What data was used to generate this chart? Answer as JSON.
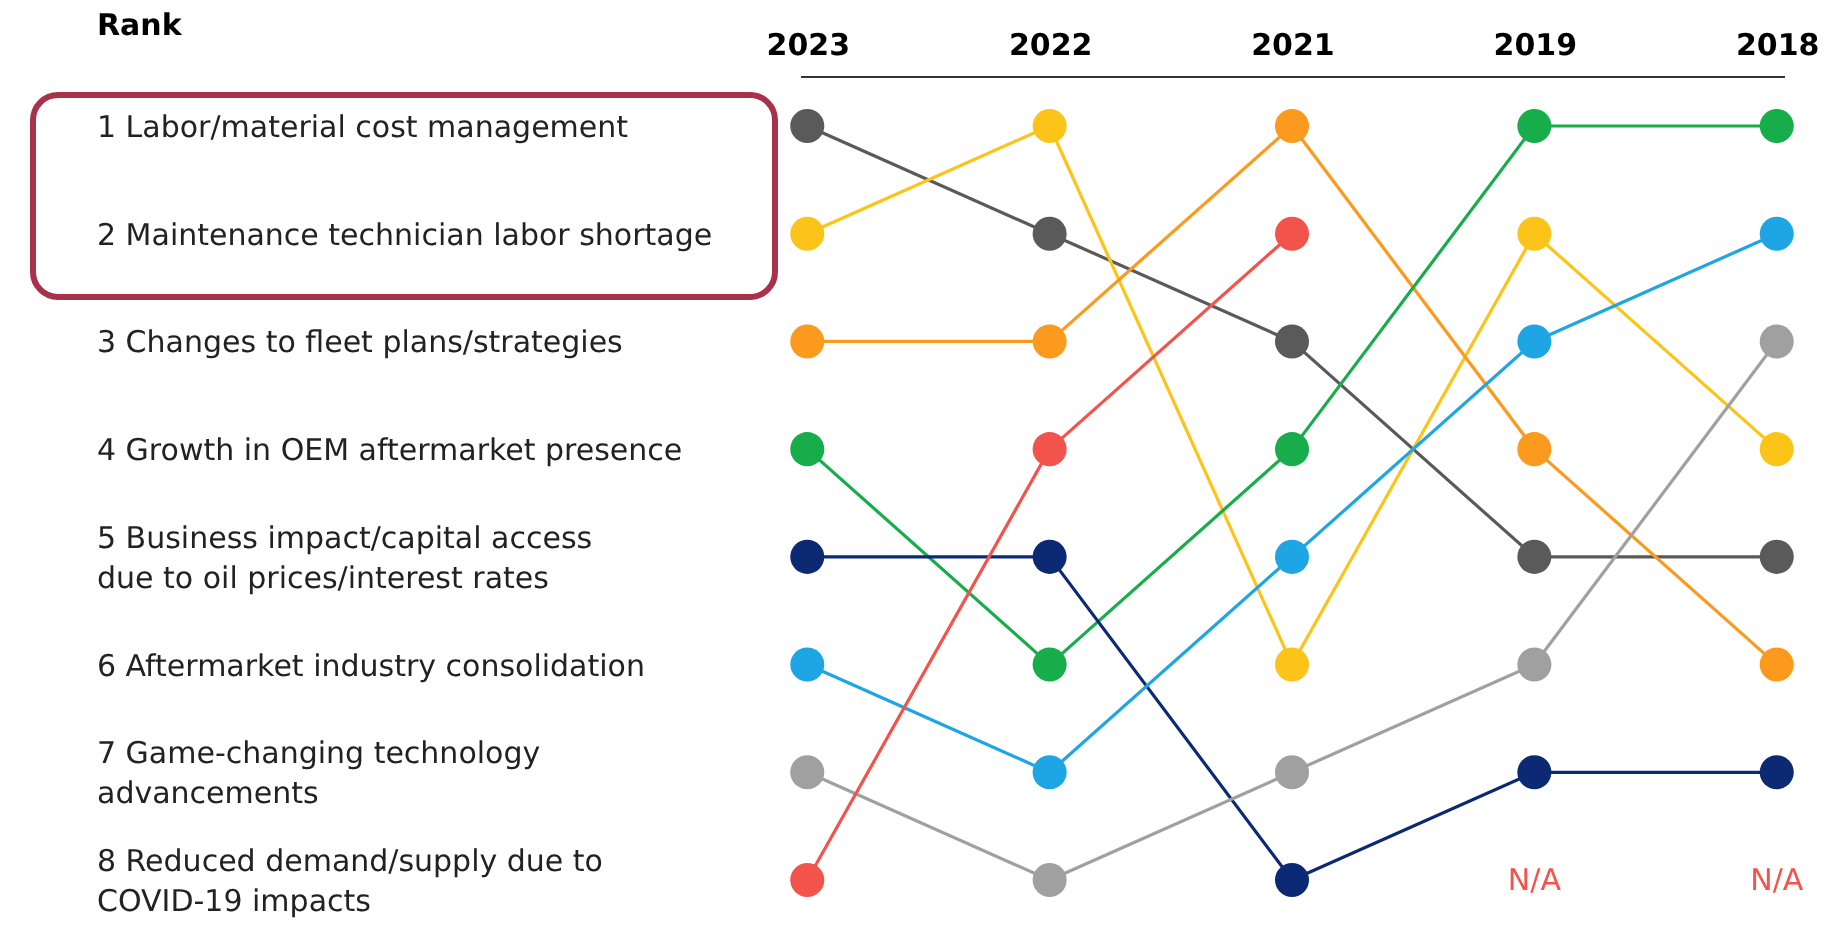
{
  "chart_data": {
    "type": "line",
    "ylabel": "Rank",
    "categories": [
      "2023",
      "2022",
      "2021",
      "2019",
      "2018"
    ],
    "series": [
      {
        "color": "#5a5a5a",
        "values": [
          1,
          2,
          3,
          5,
          5
        ]
      },
      {
        "color": "#fcc419",
        "values": [
          2,
          1,
          6,
          2,
          4
        ]
      },
      {
        "color": "#fb9a1c",
        "values": [
          3,
          3,
          1,
          4,
          6
        ]
      },
      {
        "color": "#16ad4a",
        "values": [
          4,
          6,
          4,
          1,
          1
        ]
      },
      {
        "color": "#0b2a73",
        "values": [
          5,
          5,
          8,
          7,
          7
        ]
      },
      {
        "color": "#1ea5e3",
        "values": [
          6,
          7,
          5,
          3,
          2
        ]
      },
      {
        "color": "#a0a0a0",
        "values": [
          7,
          8,
          7,
          6,
          3
        ]
      },
      {
        "color": "#f2544c",
        "values": [
          8,
          4,
          2,
          null,
          null
        ]
      }
    ],
    "ylim": [
      8,
      1
    ],
    "yticks": [
      {
        "value": 1,
        "label": "1  Labor/material cost management"
      },
      {
        "value": 2,
        "label": "2  Maintenance technician labor shortage"
      },
      {
        "value": 3,
        "label": "3  Changes to fleet plans/strategies"
      },
      {
        "value": 4,
        "label": "4  Growth in OEM aftermarket presence"
      },
      {
        "value": 5,
        "label": "5  Business impact/capital access\n    due to oil prices/interest rates"
      },
      {
        "value": 6,
        "label": "6  Aftermarket industry consolidation"
      },
      {
        "value": 7,
        "label": "7  Game-changing technology\n    advancements"
      },
      {
        "value": 8,
        "label": "8  Reduced demand/supply due to\n    COVID-19 impacts"
      }
    ],
    "annotations": [
      "N/A",
      "N/A"
    ],
    "marker": "circle",
    "grid": false
  }
}
